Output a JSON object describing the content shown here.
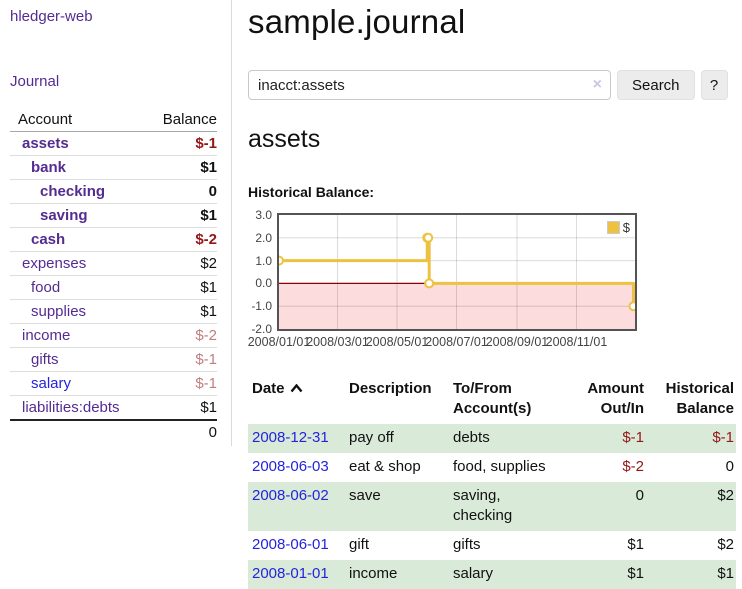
{
  "app_title": "hledger-web",
  "sidebar": {
    "journal_link": "Journal",
    "accounts_table": {
      "headers": {
        "account": "Account",
        "balance": "Balance"
      },
      "rows": [
        {
          "name": "assets",
          "balance": "$-1",
          "level": 1,
          "bold": true,
          "name_style": "purple",
          "balance_style": "neg-strong"
        },
        {
          "name": "bank",
          "balance": "$1",
          "level": 2,
          "bold": true,
          "name_style": "purple",
          "balance_style": "normal"
        },
        {
          "name": "checking",
          "balance": "0",
          "level": 3,
          "bold": true,
          "name_style": "purple",
          "balance_style": "normal"
        },
        {
          "name": "saving",
          "balance": "$1",
          "level": 3,
          "bold": true,
          "name_style": "purple",
          "balance_style": "normal"
        },
        {
          "name": "cash",
          "balance": "$-2",
          "level": 2,
          "bold": true,
          "name_style": "purple",
          "balance_style": "neg-strong"
        },
        {
          "name": "expenses",
          "balance": "$2",
          "level": 1,
          "bold": false,
          "name_style": "purple",
          "balance_style": "normal"
        },
        {
          "name": "food",
          "balance": "$1",
          "level": 2,
          "bold": false,
          "name_style": "purple",
          "balance_style": "normal"
        },
        {
          "name": "supplies",
          "balance": "$1",
          "level": 2,
          "bold": false,
          "name_style": "purple",
          "balance_style": "normal"
        },
        {
          "name": "income",
          "balance": "$-2",
          "level": 1,
          "bold": false,
          "name_style": "purple",
          "balance_style": "neg-soft"
        },
        {
          "name": "gifts",
          "balance": "$-1",
          "level": 2,
          "bold": false,
          "name_style": "purple",
          "balance_style": "neg-soft"
        },
        {
          "name": "salary",
          "balance": "$-1",
          "level": 2,
          "bold": false,
          "name_style": "blue",
          "balance_style": "neg-soft"
        },
        {
          "name": "liabilities:debts",
          "balance": "$1",
          "level": 1,
          "bold": false,
          "name_style": "purple",
          "balance_style": "normal"
        }
      ],
      "total": "0"
    }
  },
  "main": {
    "title": "sample.journal",
    "search": {
      "value": "inacct:assets",
      "clear_label": "×",
      "button_label": "Search",
      "help_label": "?"
    },
    "account_heading": "assets",
    "chart_title": "Historical Balance:"
  },
  "chart_data": {
    "type": "line",
    "steps": true,
    "title": "Historical Balance:",
    "series": [
      {
        "name": "$",
        "color": "#edc240",
        "points": [
          [
            "2008-01-01",
            1
          ],
          [
            "2008-06-01",
            2
          ],
          [
            "2008-06-02",
            2
          ],
          [
            "2008-06-03",
            0
          ],
          [
            "2008-12-31",
            -1
          ]
        ]
      }
    ],
    "x_range": [
      "2008-01-01",
      "2008-12-31"
    ],
    "x_ticks": [
      "2008/01/01",
      "2008/03/01",
      "2008/05/01",
      "2008/07/01",
      "2008/09/01",
      "2008/11/01"
    ],
    "y_ticks": [
      "3.0",
      "2.0",
      "1.0",
      "0.0",
      "-1.0",
      "-2.0"
    ],
    "ylim": [
      -2,
      3
    ],
    "grid": true,
    "legend": {
      "label": "$",
      "position": "top-right"
    },
    "negative_fill": "#fcdcdc",
    "zero_line_color": "#8b0000",
    "border_color": "#545454"
  },
  "register": {
    "headers": {
      "date": "Date",
      "description": "Description",
      "accounts_1": "To/From",
      "accounts_2": "Account(s)",
      "amount_1": "Amount",
      "amount_2": "Out/In",
      "balance_1": "Historical",
      "balance_2": "Balance"
    },
    "rows": [
      {
        "date": "2008-12-31",
        "description": "pay off",
        "accounts": "debts",
        "amount": "$-1",
        "amount_neg": true,
        "balance": "$-1",
        "balance_neg": true,
        "shaded": true
      },
      {
        "date": "2008-06-03",
        "description": "eat & shop",
        "accounts": "food, supplies",
        "amount": "$-2",
        "amount_neg": true,
        "balance": "0",
        "balance_neg": false,
        "shaded": false
      },
      {
        "date": "2008-06-02",
        "description": "save",
        "accounts": "saving, checking",
        "amount": "0",
        "amount_neg": false,
        "balance": "$2",
        "balance_neg": false,
        "shaded": true
      },
      {
        "date": "2008-06-01",
        "description": "gift",
        "accounts": "gifts",
        "amount": "$1",
        "amount_neg": false,
        "balance": "$2",
        "balance_neg": false,
        "shaded": false
      },
      {
        "date": "2008-01-01",
        "description": "income",
        "accounts": "salary",
        "amount": "$1",
        "amount_neg": false,
        "balance": "$1",
        "balance_neg": false,
        "shaded": true
      }
    ]
  },
  "colors": {
    "link_purple": "#542c91",
    "link_blue": "#2424dd",
    "negative_strong": "#941616",
    "negative_soft": "#c17f7f",
    "row_green": "#d9ead8",
    "chart_line": "#edc240",
    "chart_negative_fill": "#fcdcdc",
    "chart_zero_line": "#8b0000"
  }
}
